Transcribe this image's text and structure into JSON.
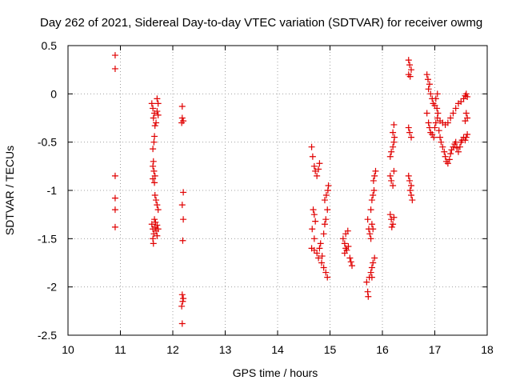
{
  "chart_data": {
    "type": "scatter",
    "title": "Day 262 of 2021, Sidereal Day-to-day VTEC variation (SDTVAR) for receiver owmg",
    "xlabel": "GPS time / hours",
    "ylabel": "SDTVAR / TECUs",
    "xlim": [
      10,
      18
    ],
    "ylim": [
      -2.5,
      0.5
    ],
    "x_ticks": [
      "10",
      "11",
      "12",
      "13",
      "14",
      "15",
      "16",
      "17",
      "18"
    ],
    "y_ticks": [
      "0.5",
      "0",
      "-0.5",
      "-1",
      "-1.5",
      "-2",
      "-2.5"
    ],
    "grid": true,
    "marker": "+",
    "colors": {
      "series": "#e00000",
      "grid": "#a0a0a0",
      "axis": "#000000"
    },
    "series": [
      {
        "name": "SDTVAR",
        "points": [
          [
            10.9,
            0.4
          ],
          [
            10.9,
            0.26
          ],
          [
            10.9,
            -0.85
          ],
          [
            10.9,
            -1.08
          ],
          [
            10.9,
            -1.2
          ],
          [
            10.9,
            -1.38
          ],
          [
            11.6,
            -0.1
          ],
          [
            11.62,
            -0.15
          ],
          [
            11.65,
            -0.2
          ],
          [
            11.63,
            -0.25
          ],
          [
            11.7,
            -0.18
          ],
          [
            11.72,
            -0.22
          ],
          [
            11.68,
            -0.3
          ],
          [
            11.66,
            -0.33
          ],
          [
            11.7,
            -0.05
          ],
          [
            11.72,
            -0.1
          ],
          [
            11.64,
            -0.5
          ],
          [
            11.62,
            -0.57
          ],
          [
            11.65,
            -0.44
          ],
          [
            11.62,
            -0.75
          ],
          [
            11.64,
            -0.8
          ],
          [
            11.66,
            -0.85
          ],
          [
            11.62,
            -0.88
          ],
          [
            11.65,
            -0.92
          ],
          [
            11.63,
            -0.7
          ],
          [
            11.68,
            -1.1
          ],
          [
            11.7,
            -1.15
          ],
          [
            11.72,
            -1.2
          ],
          [
            11.66,
            -1.05
          ],
          [
            11.6,
            -1.35
          ],
          [
            11.62,
            -1.4
          ],
          [
            11.64,
            -1.45
          ],
          [
            11.66,
            -1.38
          ],
          [
            11.68,
            -1.42
          ],
          [
            11.7,
            -1.47
          ],
          [
            11.72,
            -1.4
          ],
          [
            11.62,
            -1.5
          ],
          [
            11.63,
            -1.55
          ],
          [
            11.65,
            -1.3
          ],
          [
            11.67,
            -1.33
          ],
          [
            11.7,
            -1.36
          ],
          [
            12.18,
            -0.13
          ],
          [
            12.18,
            -0.25
          ],
          [
            12.2,
            -0.28
          ],
          [
            12.17,
            -0.3
          ],
          [
            12.2,
            -1.02
          ],
          [
            12.18,
            -1.15
          ],
          [
            12.2,
            -1.3
          ],
          [
            12.19,
            -1.52
          ],
          [
            12.18,
            -2.08
          ],
          [
            12.2,
            -2.12
          ],
          [
            12.17,
            -2.2
          ],
          [
            12.19,
            -2.15
          ],
          [
            12.18,
            -2.38
          ],
          [
            14.65,
            -0.55
          ],
          [
            14.67,
            -0.65
          ],
          [
            14.7,
            -0.75
          ],
          [
            14.72,
            -0.8
          ],
          [
            14.75,
            -0.85
          ],
          [
            14.78,
            -0.78
          ],
          [
            14.8,
            -0.72
          ],
          [
            14.68,
            -1.2
          ],
          [
            14.7,
            -1.25
          ],
          [
            14.72,
            -1.32
          ],
          [
            14.66,
            -1.4
          ],
          [
            14.7,
            -1.5
          ],
          [
            14.65,
            -1.6
          ],
          [
            14.7,
            -1.62
          ],
          [
            14.75,
            -1.65
          ],
          [
            14.78,
            -1.7
          ],
          [
            14.8,
            -1.6
          ],
          [
            14.82,
            -1.55
          ],
          [
            14.85,
            -1.68
          ],
          [
            14.84,
            -1.75
          ],
          [
            14.88,
            -1.45
          ],
          [
            14.9,
            -1.35
          ],
          [
            14.92,
            -1.3
          ],
          [
            14.95,
            -1.2
          ],
          [
            14.9,
            -1.1
          ],
          [
            14.93,
            -1.05
          ],
          [
            14.96,
            -1.0
          ],
          [
            14.97,
            -0.95
          ],
          [
            14.88,
            -1.8
          ],
          [
            14.92,
            -1.85
          ],
          [
            14.95,
            -1.9
          ],
          [
            15.25,
            -1.5
          ],
          [
            15.28,
            -1.55
          ],
          [
            15.3,
            -1.6
          ],
          [
            15.32,
            -1.62
          ],
          [
            15.35,
            -1.58
          ],
          [
            15.3,
            -1.45
          ],
          [
            15.28,
            -1.65
          ],
          [
            15.38,
            -1.7
          ],
          [
            15.4,
            -1.74
          ],
          [
            15.42,
            -1.78
          ],
          [
            15.34,
            -1.42
          ],
          [
            15.72,
            -1.3
          ],
          [
            15.74,
            -1.4
          ],
          [
            15.76,
            -1.45
          ],
          [
            15.8,
            -1.35
          ],
          [
            15.82,
            -1.4
          ],
          [
            15.78,
            -1.5
          ],
          [
            15.7,
            -1.95
          ],
          [
            15.72,
            -2.05
          ],
          [
            15.73,
            -2.1
          ],
          [
            15.75,
            -1.9
          ],
          [
            15.78,
            -1.85
          ],
          [
            15.8,
            -1.8
          ],
          [
            15.82,
            -1.75
          ],
          [
            15.85,
            -1.7
          ],
          [
            15.8,
            -1.9
          ],
          [
            15.78,
            -1.2
          ],
          [
            15.8,
            -1.1
          ],
          [
            15.82,
            -1.05
          ],
          [
            15.84,
            -1.0
          ],
          [
            15.83,
            -0.9
          ],
          [
            15.85,
            -0.85
          ],
          [
            15.87,
            -0.8
          ],
          [
            16.15,
            -0.65
          ],
          [
            16.17,
            -0.6
          ],
          [
            16.2,
            -0.55
          ],
          [
            16.22,
            -0.5
          ],
          [
            16.23,
            -0.45
          ],
          [
            16.2,
            -0.4
          ],
          [
            16.22,
            -0.32
          ],
          [
            16.15,
            -0.85
          ],
          [
            16.17,
            -0.9
          ],
          [
            16.2,
            -0.95
          ],
          [
            16.22,
            -0.8
          ],
          [
            16.15,
            -1.25
          ],
          [
            16.17,
            -1.3
          ],
          [
            16.2,
            -1.35
          ],
          [
            16.18,
            -1.38
          ],
          [
            16.22,
            -1.28
          ],
          [
            16.5,
            -0.35
          ],
          [
            16.52,
            -0.4
          ],
          [
            16.55,
            -0.45
          ],
          [
            16.5,
            -0.85
          ],
          [
            16.52,
            -0.9
          ],
          [
            16.55,
            -0.95
          ],
          [
            16.53,
            -1.0
          ],
          [
            16.55,
            -1.05
          ],
          [
            16.57,
            -1.1
          ],
          [
            16.5,
            0.35
          ],
          [
            16.52,
            0.3
          ],
          [
            16.55,
            0.25
          ],
          [
            16.5,
            0.2
          ],
          [
            16.53,
            0.18
          ],
          [
            16.85,
            0.2
          ],
          [
            16.87,
            0.15
          ],
          [
            16.9,
            0.1
          ],
          [
            16.88,
            0.05
          ],
          [
            16.92,
            0.0
          ],
          [
            16.95,
            -0.05
          ],
          [
            16.97,
            -0.1
          ],
          [
            17.0,
            -0.12
          ],
          [
            17.02,
            -0.05
          ],
          [
            17.05,
            0.0
          ],
          [
            17.04,
            -0.15
          ],
          [
            17.06,
            -0.2
          ],
          [
            16.85,
            -0.2
          ],
          [
            16.88,
            -0.3
          ],
          [
            16.9,
            -0.35
          ],
          [
            16.92,
            -0.4
          ],
          [
            16.95,
            -0.42
          ],
          [
            16.98,
            -0.45
          ],
          [
            17.0,
            -0.35
          ],
          [
            17.02,
            -0.3
          ],
          [
            17.05,
            -0.25
          ],
          [
            17.08,
            -0.38
          ],
          [
            17.1,
            -0.45
          ],
          [
            17.12,
            -0.5
          ],
          [
            17.15,
            -0.55
          ],
          [
            17.18,
            -0.6
          ],
          [
            17.2,
            -0.65
          ],
          [
            17.22,
            -0.7
          ],
          [
            17.25,
            -0.72
          ],
          [
            17.28,
            -0.68
          ],
          [
            17.3,
            -0.62
          ],
          [
            17.32,
            -0.58
          ],
          [
            17.35,
            -0.55
          ],
          [
            17.38,
            -0.52
          ],
          [
            17.4,
            -0.5
          ],
          [
            17.42,
            -0.56
          ],
          [
            17.45,
            -0.6
          ],
          [
            17.48,
            -0.55
          ],
          [
            17.5,
            -0.5
          ],
          [
            17.52,
            -0.48
          ],
          [
            17.55,
            -0.45
          ],
          [
            17.1,
            -0.28
          ],
          [
            17.15,
            -0.3
          ],
          [
            17.2,
            -0.32
          ],
          [
            17.25,
            -0.3
          ],
          [
            17.3,
            -0.25
          ],
          [
            17.35,
            -0.2
          ],
          [
            17.4,
            -0.15
          ],
          [
            17.45,
            -0.1
          ],
          [
            17.5,
            -0.08
          ],
          [
            17.55,
            -0.05
          ],
          [
            17.58,
            -0.02
          ],
          [
            17.6,
            0.0
          ],
          [
            17.62,
            -0.03
          ],
          [
            17.6,
            -0.2
          ],
          [
            17.62,
            -0.25
          ],
          [
            17.58,
            -0.28
          ],
          [
            17.6,
            -0.45
          ],
          [
            17.62,
            -0.42
          ],
          [
            17.58,
            -0.48
          ]
        ]
      }
    ]
  }
}
